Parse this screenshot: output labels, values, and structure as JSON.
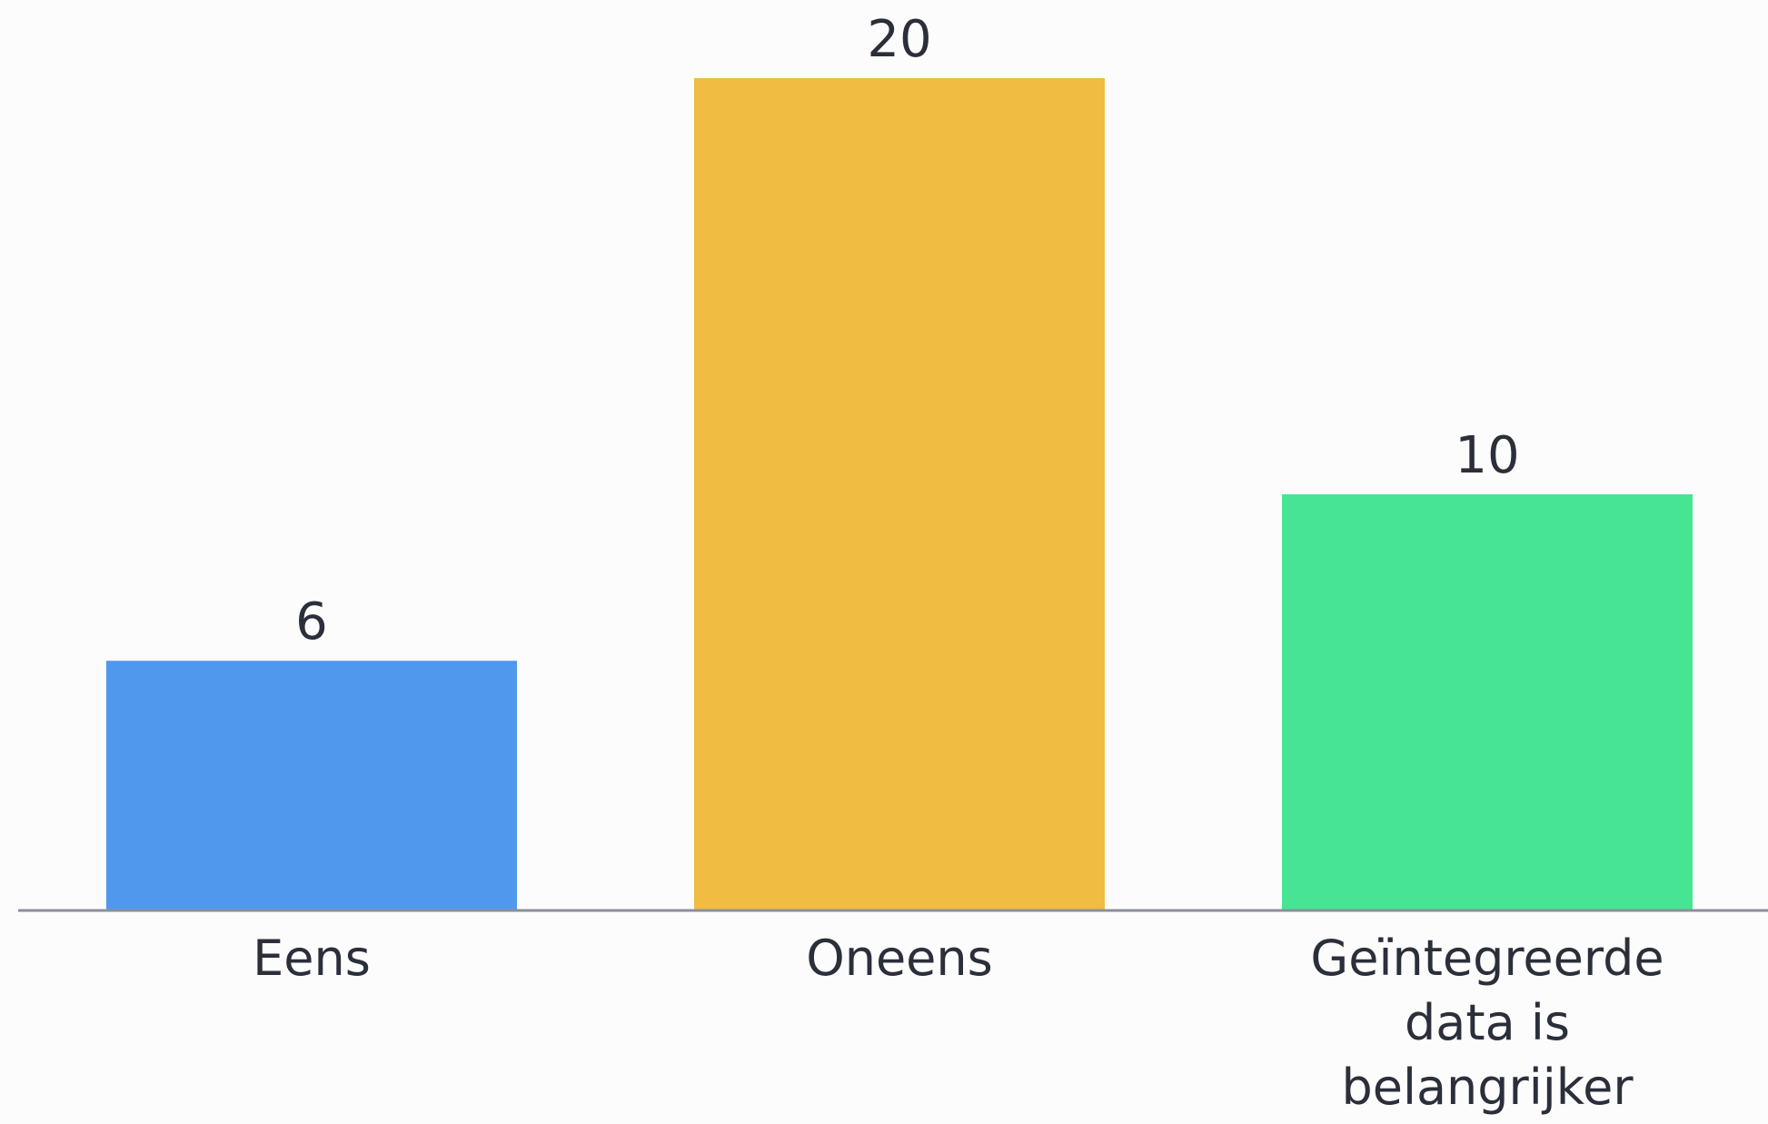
{
  "chart_data": {
    "type": "bar",
    "categories": [
      [
        "Eens"
      ],
      [
        "Oneens"
      ],
      [
        "Geïntegreerde",
        "data is",
        "belangrijker"
      ]
    ],
    "values": [
      6,
      20,
      10
    ],
    "colors": [
      "#4f98ee",
      "#f0bd42",
      "#47e593"
    ],
    "ylim": [
      0,
      20
    ],
    "grid": false,
    "title": "",
    "xlabel": "",
    "ylabel": ""
  }
}
